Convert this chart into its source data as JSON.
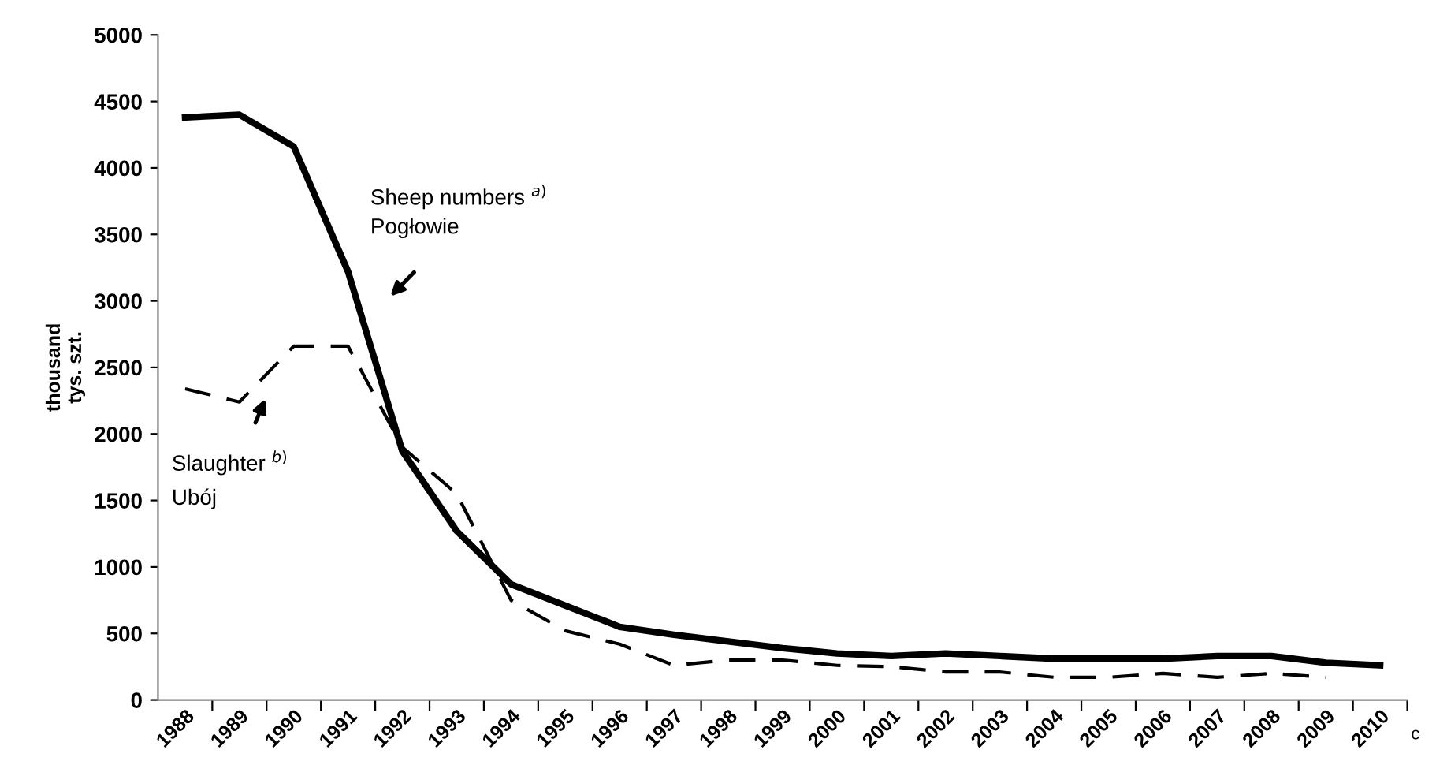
{
  "chart_data": {
    "type": "line",
    "ylabel": "thousand\ntys. szt.",
    "categories": [
      "1988",
      "1989",
      "1990",
      "1991",
      "1992",
      "1993",
      "1994",
      "1995",
      "1996",
      "1997",
      "1998",
      "1999",
      "2000",
      "2001",
      "2002",
      "2003",
      "2004",
      "2005",
      "2006",
      "2007",
      "2008",
      "2009",
      "2010"
    ],
    "series": [
      {
        "color": "#000000",
        "line_style": "solid",
        "values": [
          4380,
          4400,
          4160,
          3220,
          1870,
          1270,
          870,
          710,
          550,
          490,
          440,
          390,
          350,
          330,
          350,
          330,
          310,
          310,
          310,
          330,
          330,
          280,
          260
        ]
      },
      {
        "color": "#000000",
        "line_style": "dashed",
        "values": [
          2340,
          2240,
          2660,
          2660,
          1900,
          1550,
          750,
          520,
          420,
          260,
          300,
          300,
          260,
          250,
          210,
          210,
          170,
          170,
          200,
          170,
          200,
          170,
          null
        ]
      }
    ],
    "ylim": [
      0,
      5000
    ],
    "yticks": [
      0,
      500,
      1000,
      1500,
      2000,
      2500,
      3000,
      3500,
      4000,
      4500,
      5000
    ],
    "grid": false,
    "legend": false,
    "annotations": [
      "Sheep numbers $^{a)}$",
      "Pogłowie",
      "Slaughter $^{b)}$",
      "Ubój",
      "c"
    ]
  }
}
